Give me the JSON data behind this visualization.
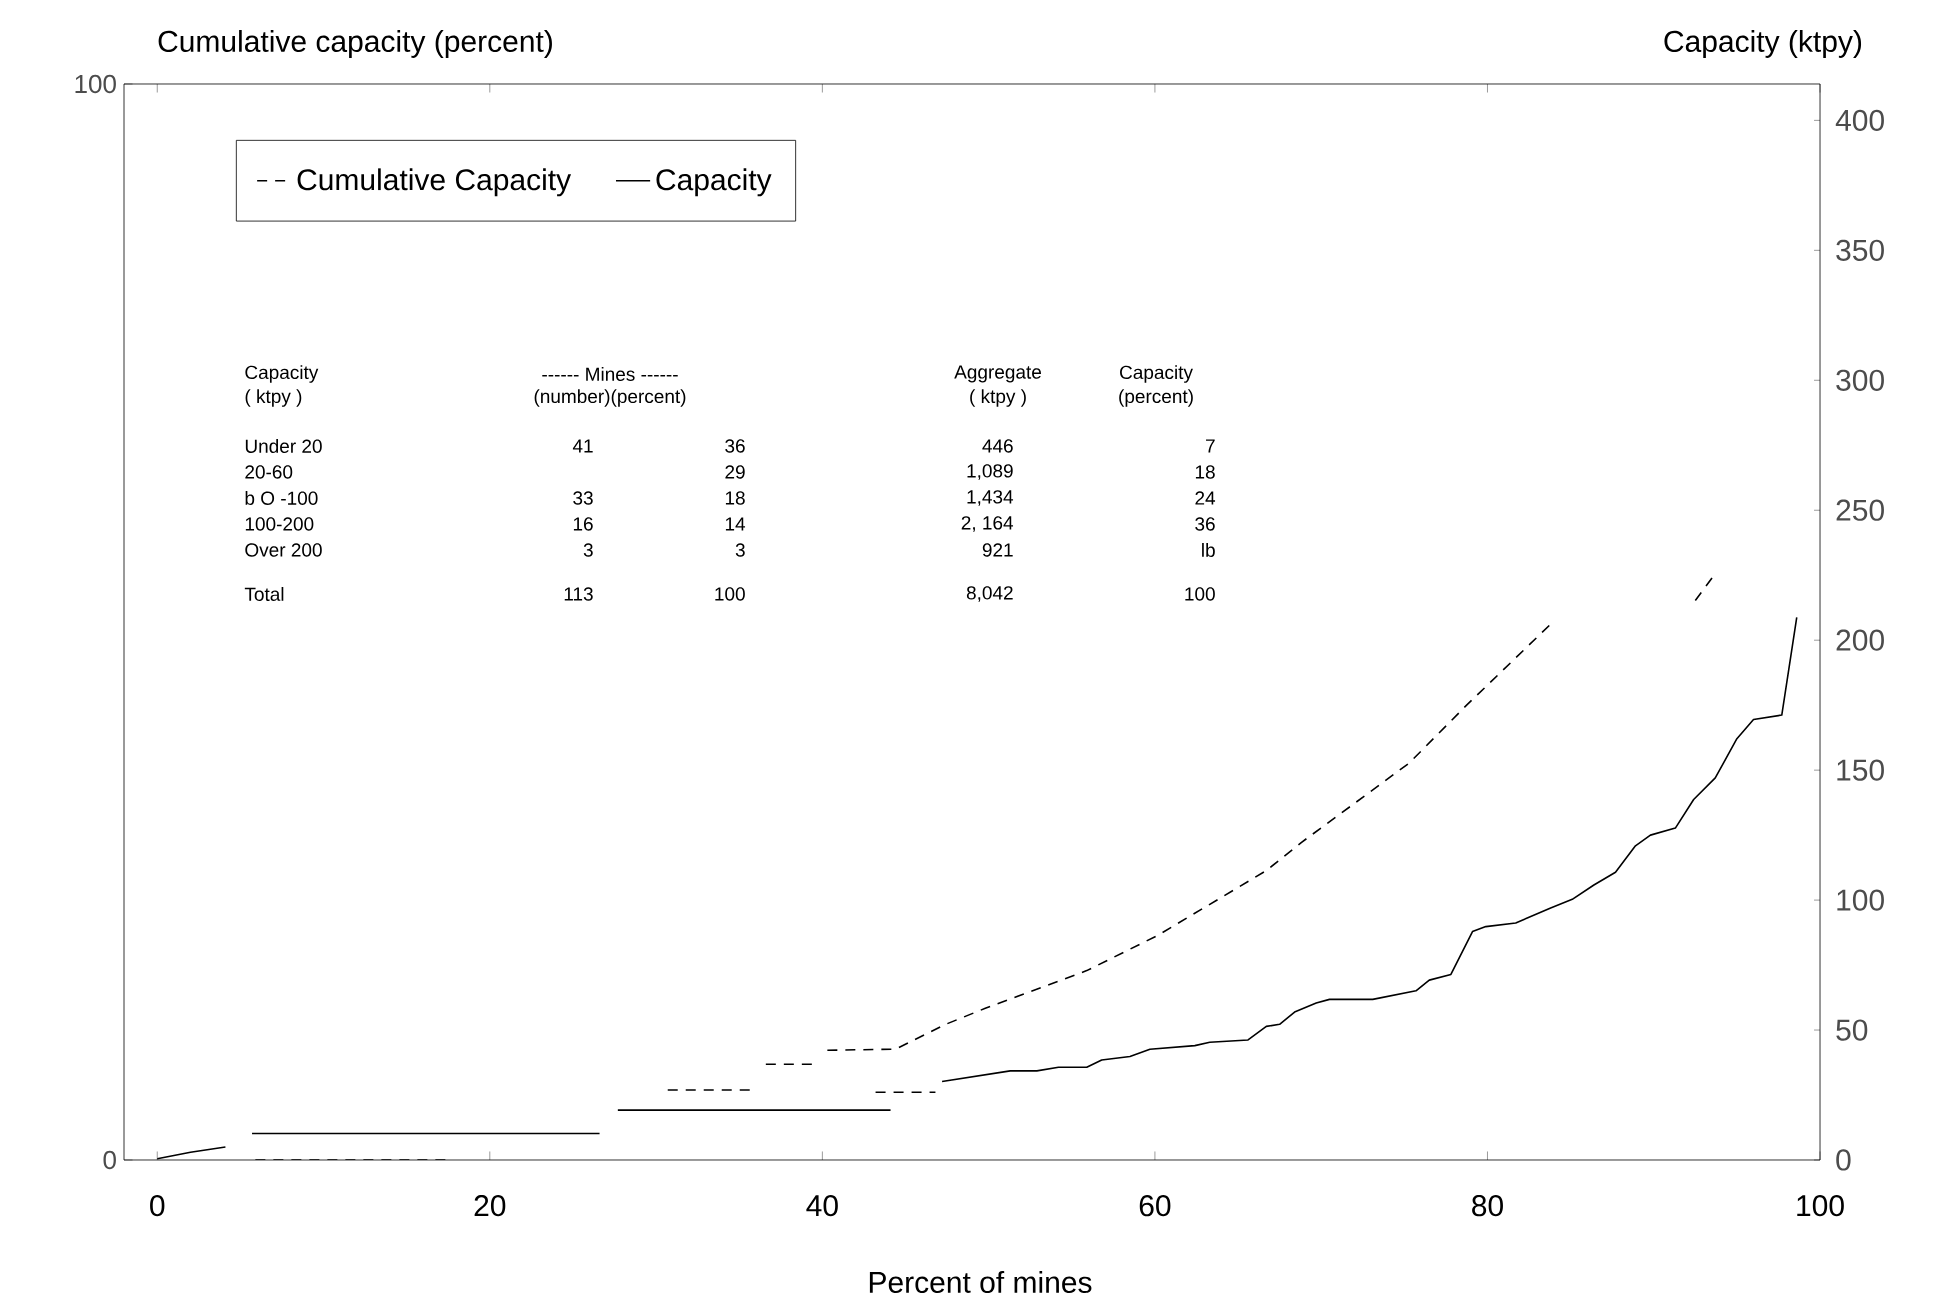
{
  "chart_data": {
    "type": "line",
    "ylabel": "Cumulative capacity (percent)",
    "y2label": "Capacity (ktpy)",
    "xlabel": "Percent of mines",
    "xlim": [
      -2,
      100
    ],
    "xticks": [
      0,
      20,
      40,
      60,
      80,
      100
    ],
    "ylim": [
      0,
      100
    ],
    "yticks": [
      0,
      100
    ],
    "y2lim": [
      0,
      414
    ],
    "y2ticks": [
      0,
      50,
      100,
      150,
      200,
      250,
      300,
      350,
      400
    ],
    "legend": "top left",
    "grid": false,
    "marker": "none",
    "series": [
      {
        "name": "Cumulative Capacity",
        "color": "#000000",
        "axis": "y",
        "line_style": "dashed",
        "x": [
          43.2,
          46.8,
          30,
          5.9,
          17.5,
          24,
          30.7,
          35.7,
          36.1,
          36.6,
          39.5,
          39.9,
          40.3,
          44.4,
          47.4,
          49.8,
          55.9,
          60.2,
          66.7,
          68.8,
          75.3,
          78.7,
          83.8,
          88,
          92.5,
          93.7
        ],
        "values": [
          6.3,
          6.3,
          null,
          0,
          0,
          null,
          6.5,
          6.5,
          null,
          8.9,
          8.9,
          null,
          10.2,
          10.3,
          12.6,
          14.1,
          17.6,
          20.9,
          26.9,
          29.5,
          36.9,
          42.2,
          49.8,
          null,
          52,
          54.5
        ]
      },
      {
        "name": "Capacity",
        "color": "#000000",
        "axis": "y2",
        "line_style": "solid",
        "x": [
          0,
          2,
          4.1,
          4.9,
          5.7,
          26.6,
          27.1,
          27.7,
          44.1,
          45.5,
          47.2,
          51.3,
          52.9,
          54.2,
          55.9,
          56.8,
          58.5,
          59.7,
          62.4,
          63.3,
          65.6,
          66.7,
          67.5,
          68.4,
          69.7,
          70.5,
          73.1,
          75.7,
          76.5,
          77.8,
          79.1,
          79.9,
          81.7,
          83.8,
          85.1,
          86.4,
          87.7,
          88.9,
          89.8,
          91.3,
          92.4,
          93.7,
          95.0,
          96.0,
          97.7,
          98.6
        ],
        "values": [
          0.5,
          3,
          5,
          null,
          10.2,
          10.2,
          null,
          19.2,
          19.2,
          null,
          30.2,
          34.3,
          34.3,
          35.7,
          35.7,
          38.5,
          39.8,
          42.6,
          44.0,
          45.3,
          46.2,
          51.4,
          52.2,
          56.9,
          60.4,
          61.8,
          61.8,
          65.1,
          69.2,
          71.4,
          87.9,
          89.8,
          91.2,
          97.0,
          100.3,
          105.8,
          110.7,
          120.9,
          125.0,
          127.7,
          138.7,
          147.0,
          162.1,
          169.5,
          171.2,
          208.8
        ]
      }
    ],
    "annotations": [
      "Capacity",
      "------ Mines ------",
      "Aggregate",
      "Capacity",
      "( ktpy )",
      "(number)(percent)",
      "( ktpy )",
      "(percent)",
      "Under 20",
      "41",
      "36",
      "446",
      "7",
      "20-60",
      "29",
      "1,089",
      "18",
      "b O -100",
      "33",
      "18",
      "1,434",
      "24",
      "100-200",
      "16",
      "14",
      "2, 164",
      "36",
      "Over 200",
      "3",
      "3",
      "921",
      "lb",
      "Total",
      "113",
      "100",
      "8,042",
      "100"
    ]
  }
}
